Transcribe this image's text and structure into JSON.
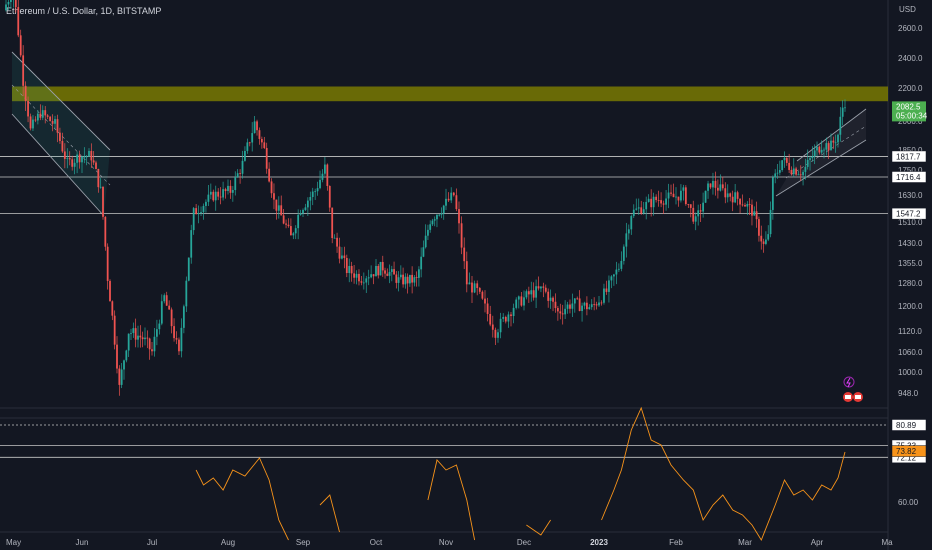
{
  "header": {
    "title": "Ethereum / U.S. Dollar, 1D, BITSTAMP",
    "currency": "USD"
  },
  "colors": {
    "background": "#131722",
    "up": "#26a69a",
    "down": "#ef5350",
    "zone": "#808000",
    "indicator": "#f7931a",
    "level_line": "#c8c8c8",
    "price_label": "#4caf50"
  },
  "chart_data": {
    "type": "candlestick",
    "y_axis": {
      "ticks": [
        "2600.0",
        "2400.0",
        "2200.0",
        "2000.0",
        "1850.0",
        "1750.0",
        "1630.0",
        "1510.0",
        "1430.0",
        "1355.0",
        "1280.0",
        "1200.0",
        "1120.0",
        "1060.0",
        "1000.0",
        "948.0"
      ],
      "tick_values": [
        2600,
        2400,
        2200,
        2000,
        1850,
        1750,
        1630,
        1510,
        1430,
        1355,
        1280,
        1200,
        1120,
        1060,
        1000,
        948
      ]
    },
    "x_axis": {
      "ticks": [
        {
          "label": "May",
          "date": "2022-05-01"
        },
        {
          "label": "Jun",
          "date": "2022-06-01"
        },
        {
          "label": "Jul",
          "date": "2022-07-01"
        },
        {
          "label": "Aug",
          "date": "2022-08-01"
        },
        {
          "label": "Sep",
          "date": "2022-09-01"
        },
        {
          "label": "Oct",
          "date": "2022-10-01"
        },
        {
          "label": "Nov",
          "date": "2022-11-01"
        },
        {
          "label": "Dec",
          "date": "2022-12-01"
        },
        {
          "label": "2023",
          "date": "2023-01-01",
          "bold": true
        },
        {
          "label": "Feb",
          "date": "2023-02-01"
        },
        {
          "label": "Mar",
          "date": "2023-03-01"
        },
        {
          "label": "Apr",
          "date": "2023-04-01"
        },
        {
          "label": "Ma",
          "date": "2023-05-01"
        }
      ]
    },
    "price_anchors": [
      [
        "2022-05-01",
        2730
      ],
      [
        "2022-05-05",
        2900
      ],
      [
        "2022-05-09",
        2250
      ],
      [
        "2022-05-12",
        1950
      ],
      [
        "2022-05-16",
        2050
      ],
      [
        "2022-05-22",
        1980
      ],
      [
        "2022-05-27",
        1780
      ],
      [
        "2022-06-01",
        1820
      ],
      [
        "2022-06-06",
        1820
      ],
      [
        "2022-06-10",
        1650
      ],
      [
        "2022-06-13",
        1300
      ],
      [
        "2022-06-18",
        960
      ],
      [
        "2022-06-22",
        1120
      ],
      [
        "2022-06-28",
        1100
      ],
      [
        "2022-07-02",
        1060
      ],
      [
        "2022-07-07",
        1230
      ],
      [
        "2022-07-13",
        1050
      ],
      [
        "2022-07-19",
        1550
      ],
      [
        "2022-07-27",
        1630
      ],
      [
        "2022-08-03",
        1650
      ],
      [
        "2022-08-08",
        1780
      ],
      [
        "2022-08-13",
        1990
      ],
      [
        "2022-08-17",
        1850
      ],
      [
        "2022-08-21",
        1600
      ],
      [
        "2022-08-28",
        1450
      ],
      [
        "2022-09-01",
        1570
      ],
      [
        "2022-09-07",
        1650
      ],
      [
        "2022-09-11",
        1760
      ],
      [
        "2022-09-14",
        1460
      ],
      [
        "2022-09-20",
        1330
      ],
      [
        "2022-09-26",
        1300
      ],
      [
        "2022-10-05",
        1340
      ],
      [
        "2022-10-12",
        1290
      ],
      [
        "2022-10-20",
        1290
      ],
      [
        "2022-10-26",
        1520
      ],
      [
        "2022-10-31",
        1570
      ],
      [
        "2022-11-05",
        1630
      ],
      [
        "2022-11-10",
        1280
      ],
      [
        "2022-11-14",
        1250
      ],
      [
        "2022-11-21",
        1120
      ],
      [
        "2022-11-28",
        1200
      ],
      [
        "2022-12-04",
        1240
      ],
      [
        "2022-12-10",
        1260
      ],
      [
        "2022-12-16",
        1180
      ],
      [
        "2022-12-22",
        1210
      ],
      [
        "2022-12-30",
        1195
      ],
      [
        "2023-01-05",
        1250
      ],
      [
        "2023-01-10",
        1340
      ],
      [
        "2023-01-15",
        1550
      ],
      [
        "2023-01-20",
        1580
      ],
      [
        "2023-01-25",
        1610
      ],
      [
        "2023-02-01",
        1620
      ],
      [
        "2023-02-05",
        1640
      ],
      [
        "2023-02-10",
        1510
      ],
      [
        "2023-02-16",
        1690
      ],
      [
        "2023-02-22",
        1640
      ],
      [
        "2023-02-28",
        1610
      ],
      [
        "2023-03-05",
        1560
      ],
      [
        "2023-03-10",
        1420
      ],
      [
        "2023-03-12",
        1450
      ],
      [
        "2023-03-14",
        1690
      ],
      [
        "2023-03-18",
        1800
      ],
      [
        "2023-03-22",
        1760
      ],
      [
        "2023-03-27",
        1740
      ],
      [
        "2023-03-31",
        1820
      ],
      [
        "2023-04-04",
        1880
      ],
      [
        "2023-04-08",
        1870
      ],
      [
        "2023-04-11",
        1930
      ],
      [
        "2023-04-13",
        2082.5
      ]
    ],
    "resistance_zone": {
      "low": 2120,
      "high": 2210
    },
    "horizontal_levels": [
      {
        "price": 1817.7,
        "label": "1817.7"
      },
      {
        "price": 1716.4,
        "label": "1716.4"
      },
      {
        "price": 1547.2,
        "label": "1547.2"
      }
    ],
    "current_price": {
      "value": 2082.5,
      "label": "2082.5",
      "countdown": "05:00:34"
    },
    "indicator": {
      "ticks": [
        "60.00"
      ],
      "tick_values": [
        60
      ],
      "levels": [
        {
          "value": 80.89,
          "label": "80.89",
          "style": "dashed"
        },
        {
          "value": 75.33,
          "label": "75.33",
          "style": "solid"
        },
        {
          "value": 72.12,
          "label": "72.12",
          "style": "solid"
        }
      ],
      "current": {
        "value": 73.82,
        "label": "73.82"
      }
    }
  }
}
